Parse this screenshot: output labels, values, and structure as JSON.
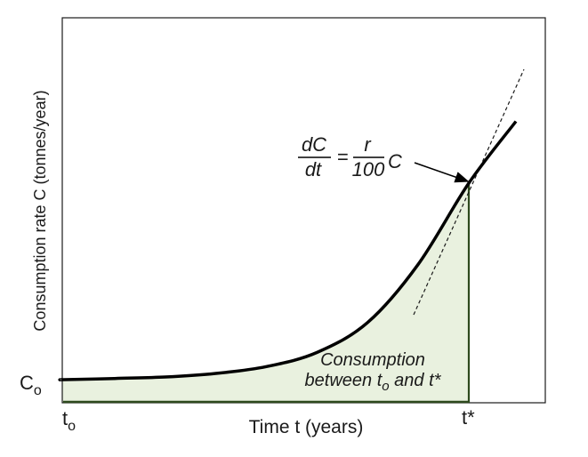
{
  "chart_data": {
    "type": "area",
    "title": "",
    "xlabel": "Time t (years)",
    "ylabel": "Consumption rate C (tonnes/year)",
    "x_ticks": [
      {
        "main": "t",
        "sub": "o"
      },
      {
        "main": "t*",
        "sub": ""
      }
    ],
    "y_ticks": [
      {
        "main": "C",
        "sub": "o"
      }
    ],
    "curve": {
      "description_form": "C = Co * exp(k * (t - to))",
      "points": [
        {
          "t": 0.0,
          "C": 1.0
        },
        {
          "t": 1.0,
          "C": 1.13
        },
        {
          "t": 2.0,
          "C": 1.29
        },
        {
          "t": 3.0,
          "C": 1.67
        },
        {
          "t": 4.0,
          "C": 2.42
        },
        {
          "t": 5.0,
          "C": 3.95
        },
        {
          "t": 6.0,
          "C": 7.2
        },
        {
          "t": 7.0,
          "C": 13.5
        },
        {
          "t": 8.0,
          "C": 22.3
        },
        {
          "t": 8.5,
          "C": 29.0
        }
      ],
      "color": "#000000"
    },
    "shaded_region": {
      "from": "t0",
      "to": "t*",
      "fill": "#e9f1df",
      "edge": "#2e4a1e"
    },
    "tangent_at": "t*",
    "annotations": {
      "equation": {
        "lhs_num": "dC",
        "lhs_den": "dt",
        "equals": "=",
        "rhs_num": "r",
        "rhs_den": "100",
        "rhs_tail": "C"
      },
      "region_label": {
        "line1": "Consumption",
        "line2_pre": "between t",
        "line2_sub": "o",
        "line2_post": " and t*"
      }
    },
    "grid": false
  }
}
